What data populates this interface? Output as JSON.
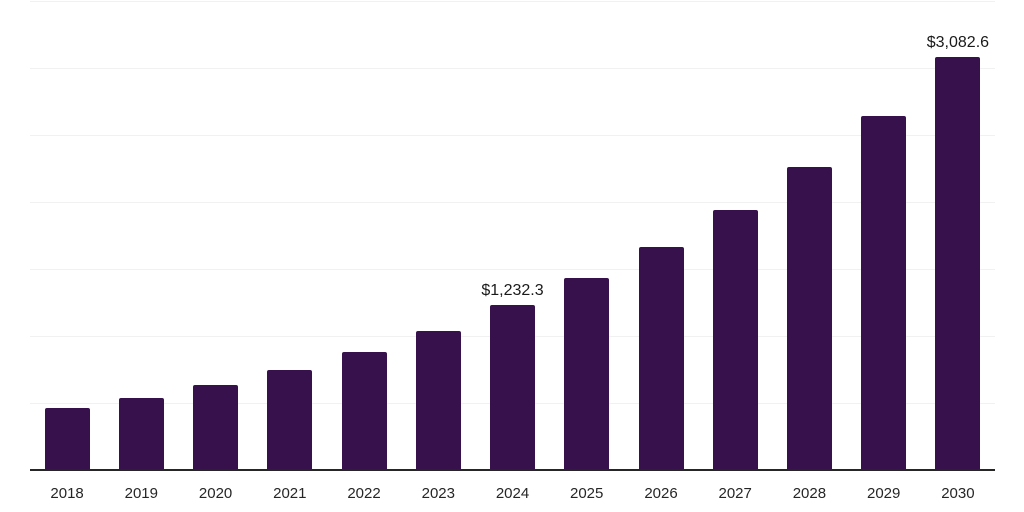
{
  "chart_data": {
    "type": "bar",
    "title": "",
    "xlabel": "",
    "ylabel": "",
    "categories": [
      "2018",
      "2019",
      "2020",
      "2021",
      "2022",
      "2023",
      "2024",
      "2025",
      "2026",
      "2027",
      "2028",
      "2029",
      "2030"
    ],
    "values": [
      460,
      535,
      634,
      746,
      878,
      1040,
      1232.3,
      1431,
      1662,
      1940,
      2259,
      2642,
      3082.6
    ],
    "data_labels": [
      {
        "index": 6,
        "text": "$1,232.3"
      },
      {
        "index": 12,
        "text": "$3,082.6"
      }
    ],
    "ylim": [
      0,
      3500
    ],
    "gridline_step": 500,
    "grid": true,
    "legend": false,
    "y_axis_tick_labels_visible": false
  },
  "colors": {
    "background": "#ffffff",
    "bar": "#36114B",
    "gridline": "#f1f1f2",
    "axis_line": "#262626",
    "tick_label": "#262626",
    "data_label": "#1a1a1a"
  }
}
